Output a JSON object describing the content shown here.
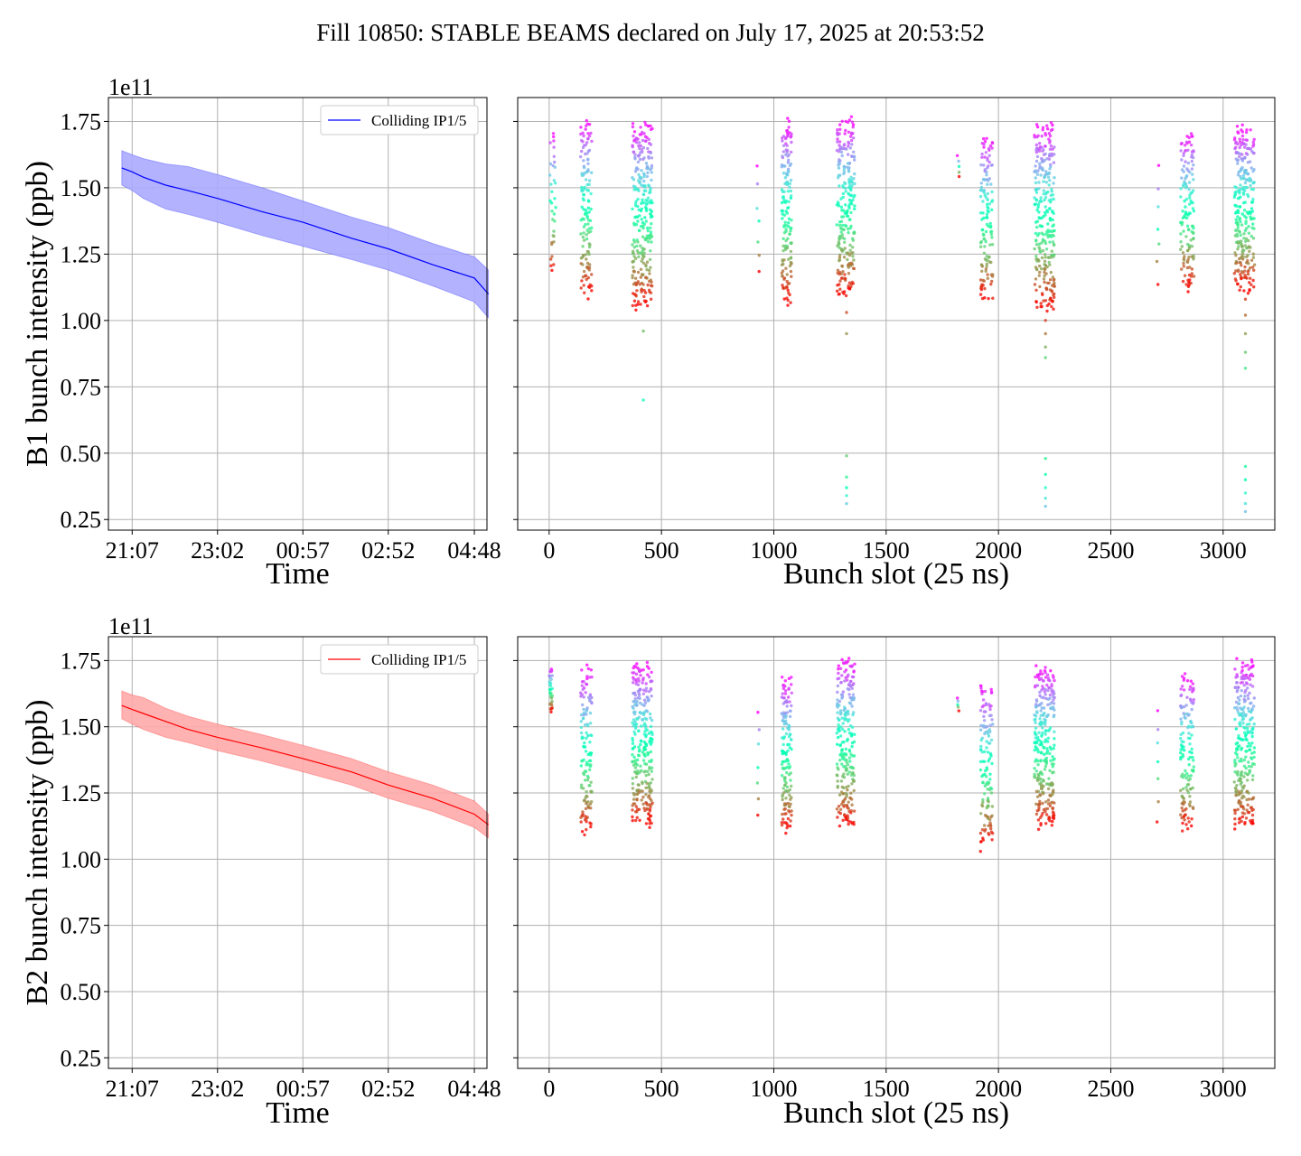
{
  "title": "Fill 10850: STABLE BEAMS declared on July 17, 2025 at 20:53:52",
  "colors": {
    "b1": "#0000ff",
    "b1_band": "#aaaaff",
    "b2": "#ff0000",
    "b2_band": "#ffaaaa"
  },
  "chart_data": [
    {
      "type": "line",
      "id": "b1-time",
      "xlabel": "Time",
      "ylabel": "B1 bunch intensity (ppb)",
      "y_offset_label": "1e11",
      "ylim": [
        0.21,
        1.84
      ],
      "xlim_hours": [
        -0.3,
        8.2
      ],
      "xticks": [
        "21:07",
        "23:02",
        "00:57",
        "02:52",
        "04:48"
      ],
      "yticks": [
        "0.25",
        "0.50",
        "0.75",
        "1.00",
        "1.25",
        "1.50",
        "1.75"
      ],
      "grid": true,
      "legend": {
        "position": "top-right",
        "entries": [
          "Colliding IP1/5"
        ]
      },
      "series": [
        {
          "name": "Colliding IP1/5",
          "x": [
            "20:53",
            "21:07",
            "21:22",
            "21:52",
            "22:22",
            "23:02",
            "00:02",
            "00:57",
            "02:02",
            "02:52",
            "03:52",
            "04:48",
            "05:07"
          ],
          "values": [
            1.575,
            1.56,
            1.54,
            1.51,
            1.49,
            1.46,
            1.41,
            1.37,
            1.31,
            1.27,
            1.21,
            1.16,
            1.1
          ],
          "band_high": [
            1.64,
            1.625,
            1.61,
            1.59,
            1.58,
            1.55,
            1.5,
            1.45,
            1.39,
            1.35,
            1.29,
            1.24,
            1.19
          ],
          "band_low": [
            1.51,
            1.49,
            1.46,
            1.42,
            1.4,
            1.37,
            1.32,
            1.28,
            1.23,
            1.19,
            1.13,
            1.07,
            1.01
          ]
        }
      ]
    },
    {
      "type": "scatter",
      "id": "b1-slots",
      "xlabel": "Bunch slot (25 ns)",
      "ylim": [
        0.21,
        1.84
      ],
      "xlim": [
        -140,
        3230
      ],
      "xticks": [
        "0",
        "500",
        "1000",
        "1500",
        "2000",
        "2500",
        "3000"
      ],
      "yticks": [
        0.25,
        0.5,
        0.75,
        1.0,
        1.25,
        1.5,
        1.75
      ],
      "grid": true,
      "colormap": "rainbow",
      "groups": [
        {
          "x": [
            0,
            30
          ],
          "range": [
            1.2,
            1.7
          ],
          "tail": [],
          "n": 34
        },
        {
          "x": [
            140,
            190
          ],
          "range": [
            1.1,
            1.74
          ],
          "tail": [],
          "n": 130
        },
        {
          "x": [
            370,
            460
          ],
          "range": [
            1.06,
            1.74
          ],
          "tail": [
            0.96,
            0.7
          ],
          "n": 280
        },
        {
          "x": [
            925,
            935
          ],
          "range": [
            1.17,
            1.57
          ],
          "tail": [],
          "n": 7
        },
        {
          "x": [
            1035,
            1080
          ],
          "range": [
            1.08,
            1.74
          ],
          "tail": [],
          "n": 150
        },
        {
          "x": [
            1280,
            1360
          ],
          "range": [
            1.1,
            1.75
          ],
          "tail": [
            1.03,
            0.95,
            0.49,
            0.41,
            0.37,
            0.34,
            0.31
          ],
          "n": 240
        },
        {
          "x": [
            1815,
            1825
          ],
          "range": [
            1.54,
            1.62
          ],
          "tail": [],
          "n": 5
        },
        {
          "x": [
            1920,
            1975
          ],
          "range": [
            1.08,
            1.69
          ],
          "tail": [],
          "n": 130
        },
        {
          "x": [
            2160,
            2250
          ],
          "range": [
            1.05,
            1.73
          ],
          "tail": [
            1.0,
            0.95,
            0.9,
            0.86,
            0.48,
            0.42,
            0.37,
            0.33,
            0.3
          ],
          "n": 280
        },
        {
          "x": [
            2705,
            2715
          ],
          "range": [
            1.14,
            1.57
          ],
          "tail": [],
          "n": 7
        },
        {
          "x": [
            2810,
            2870
          ],
          "range": [
            1.12,
            1.7
          ],
          "tail": [],
          "n": 140
        },
        {
          "x": [
            3050,
            3140
          ],
          "range": [
            1.12,
            1.72
          ],
          "tail": [
            1.08,
            1.02,
            0.95,
            0.88,
            0.82,
            0.45,
            0.4,
            0.35,
            0.31,
            0.28
          ],
          "n": 270
        }
      ]
    },
    {
      "type": "line",
      "id": "b2-time",
      "xlabel": "Time",
      "ylabel": "B2 bunch intensity (ppb)",
      "y_offset_label": "1e11",
      "ylim": [
        0.21,
        1.84
      ],
      "xlim_hours": [
        -0.3,
        8.2
      ],
      "xticks": [
        "21:07",
        "23:02",
        "00:57",
        "02:52",
        "04:48"
      ],
      "yticks": [
        "0.25",
        "0.50",
        "0.75",
        "1.00",
        "1.25",
        "1.50",
        "1.75"
      ],
      "grid": true,
      "legend": {
        "position": "top-right",
        "entries": [
          "Colliding IP1/5"
        ]
      },
      "series": [
        {
          "name": "Colliding IP1/5",
          "x": [
            "20:53",
            "21:07",
            "21:22",
            "21:52",
            "22:22",
            "23:02",
            "00:02",
            "00:57",
            "02:02",
            "02:52",
            "03:52",
            "04:48",
            "05:07"
          ],
          "values": [
            1.58,
            1.565,
            1.55,
            1.52,
            1.49,
            1.46,
            1.42,
            1.38,
            1.33,
            1.28,
            1.23,
            1.17,
            1.13
          ],
          "band_high": [
            1.635,
            1.62,
            1.61,
            1.57,
            1.54,
            1.51,
            1.47,
            1.43,
            1.38,
            1.33,
            1.28,
            1.22,
            1.17
          ],
          "band_low": [
            1.53,
            1.51,
            1.49,
            1.46,
            1.44,
            1.41,
            1.37,
            1.33,
            1.28,
            1.23,
            1.18,
            1.12,
            1.08
          ]
        }
      ]
    },
    {
      "type": "scatter",
      "id": "b2-slots",
      "xlabel": "Bunch slot (25 ns)",
      "ylim": [
        0.21,
        1.84
      ],
      "xlim": [
        -140,
        3230
      ],
      "xticks": [
        "0",
        "500",
        "1000",
        "1500",
        "2000",
        "2500",
        "3000"
      ],
      "yticks": [
        0.25,
        0.5,
        0.75,
        1.0,
        1.25,
        1.5,
        1.75
      ],
      "grid": true,
      "colormap": "rainbow",
      "groups": [
        {
          "x": [
            0,
            15
          ],
          "range": [
            1.56,
            1.72
          ],
          "tail": [],
          "n": 30
        },
        {
          "x": [
            140,
            190
          ],
          "range": [
            1.1,
            1.71
          ],
          "tail": [],
          "n": 130
        },
        {
          "x": [
            370,
            460
          ],
          "range": [
            1.14,
            1.73
          ],
          "tail": [],
          "n": 280
        },
        {
          "x": [
            925,
            935
          ],
          "range": [
            1.15,
            1.57
          ],
          "tail": [],
          "n": 7
        },
        {
          "x": [
            1035,
            1080
          ],
          "range": [
            1.11,
            1.68
          ],
          "tail": [],
          "n": 150
        },
        {
          "x": [
            1280,
            1360
          ],
          "range": [
            1.13,
            1.75
          ],
          "tail": [],
          "n": 240
        },
        {
          "x": [
            1815,
            1825
          ],
          "range": [
            1.56,
            1.61
          ],
          "tail": [],
          "n": 5
        },
        {
          "x": [
            1920,
            1975
          ],
          "range": [
            1.05,
            1.65
          ],
          "tail": [],
          "n": 130
        },
        {
          "x": [
            2160,
            2250
          ],
          "range": [
            1.13,
            1.72
          ],
          "tail": [],
          "n": 280
        },
        {
          "x": [
            2705,
            2715
          ],
          "range": [
            1.15,
            1.57
          ],
          "tail": [],
          "n": 7
        },
        {
          "x": [
            2810,
            2870
          ],
          "range": [
            1.11,
            1.69
          ],
          "tail": [],
          "n": 140
        },
        {
          "x": [
            3050,
            3140
          ],
          "range": [
            1.13,
            1.74
          ],
          "tail": [],
          "n": 270
        }
      ]
    }
  ]
}
